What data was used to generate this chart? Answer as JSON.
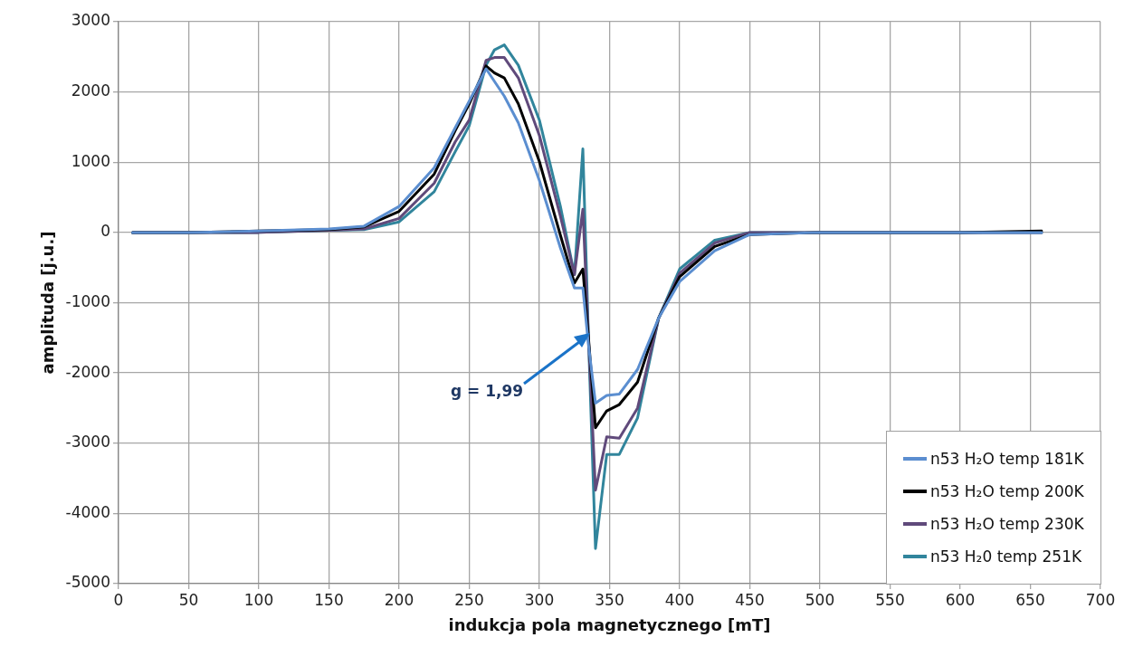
{
  "chart_data": {
    "type": "line",
    "xlabel": "indukcja pola magnetycznego [mT]",
    "ylabel": "amplituda [j.u.]",
    "x": [
      10,
      50,
      100,
      150,
      175,
      200,
      225,
      240,
      250,
      262,
      268,
      275,
      285,
      300,
      315,
      325,
      331,
      335,
      340,
      348,
      357,
      370,
      385,
      400,
      425,
      450,
      500,
      550,
      600,
      658
    ],
    "series": [
      {
        "name": "n53 H₂O temp 181K",
        "color": "#5b8ed0",
        "values": [
          0,
          0,
          20,
          50,
          90,
          370,
          920,
          1490,
          1870,
          2330,
          2150,
          1940,
          1560,
          740,
          -220,
          -790,
          -790,
          -1600,
          -2430,
          -2320,
          -2300,
          -1950,
          -1220,
          -700,
          -260,
          -30,
          0,
          0,
          0,
          0
        ]
      },
      {
        "name": "n53 H₂O temp 200K",
        "color": "#000000",
        "values": [
          0,
          0,
          20,
          40,
          80,
          300,
          830,
          1450,
          1830,
          2370,
          2270,
          2200,
          1830,
          1010,
          -40,
          -720,
          -520,
          -1500,
          -2780,
          -2540,
          -2450,
          -2130,
          -1220,
          -630,
          -200,
          -30,
          0,
          0,
          0,
          20
        ]
      },
      {
        "name": "n53 H₂O temp 230K",
        "color": "#604a7b",
        "values": [
          0,
          0,
          0,
          30,
          50,
          200,
          700,
          1290,
          1600,
          2450,
          2490,
          2490,
          2200,
          1380,
          230,
          -600,
          330,
          -1500,
          -3670,
          -2910,
          -2930,
          -2500,
          -1220,
          -580,
          -150,
          0,
          0,
          0,
          0,
          0
        ]
      },
      {
        "name": "n53 H₂0 temp 251K",
        "color": "#31859c",
        "values": [
          0,
          0,
          0,
          30,
          40,
          150,
          580,
          1150,
          1520,
          2380,
          2600,
          2670,
          2380,
          1600,
          370,
          -600,
          1190,
          -1500,
          -4500,
          -3160,
          -3160,
          -2640,
          -1220,
          -520,
          -110,
          0,
          0,
          0,
          0,
          0
        ]
      }
    ],
    "xlim": [
      0,
      700
    ],
    "xticks": [
      0,
      50,
      100,
      150,
      200,
      250,
      300,
      350,
      400,
      450,
      500,
      550,
      600,
      650,
      700
    ],
    "ylim": [
      -5000,
      3000
    ],
    "yticks": [
      -5000,
      -4000,
      -3000,
      -2000,
      -1000,
      0,
      1000,
      2000,
      3000
    ],
    "grid": true,
    "legend": "bottom right",
    "marker": "none",
    "line_style": "solid",
    "annotations": [
      "g = 1,99"
    ]
  }
}
